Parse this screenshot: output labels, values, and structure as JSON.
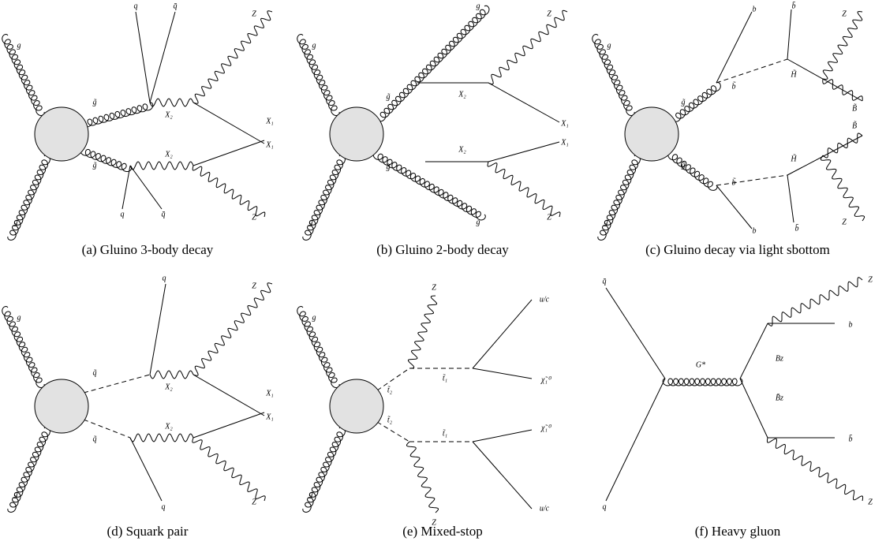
{
  "panels": [
    {
      "caption": "(a)  Gluino 3-body decay",
      "labels": [
        "g",
        "g",
        "q",
        "q̄",
        "Z",
        "g̃",
        "X₂",
        "X₁",
        "X₂",
        "X₁",
        "g̃",
        "q",
        "q̄",
        "Z"
      ]
    },
    {
      "caption": "(b)  Gluino 2-body decay",
      "labels": [
        "g",
        "g",
        "g",
        "Z",
        "g̃",
        "X₂",
        "X₁",
        "X₂",
        "X₁",
        "g̃",
        "g",
        "Z"
      ]
    },
    {
      "caption": "(c)  Gluino decay via light sbottom",
      "labels": [
        "g",
        "g",
        "b",
        "b̄",
        "Z",
        "g̃",
        "b̃",
        "H̃",
        "B̃",
        "g̃",
        "b̃",
        "H̃",
        "B̃",
        "b",
        "b̄",
        "Z"
      ]
    },
    {
      "caption": "(d)  Squark pair",
      "labels": [
        "g",
        "g",
        "q",
        "Z",
        "q̃",
        "X₂",
        "X₁",
        "X₂",
        "X₁",
        "q̃",
        "q",
        "Z"
      ]
    },
    {
      "caption": "(e)  Mixed-stop",
      "labels": [
        "g",
        "g",
        "Z",
        "u/c",
        "t̃₂",
        "t̃₁",
        "χ̃₁⁰",
        "t̃₂",
        "t̃₁",
        "χ̃₁⁰",
        "u/c",
        "Z"
      ]
    },
    {
      "caption": "(f)  Heavy gluon",
      "labels": [
        "q̄",
        "q",
        "G*",
        "Z",
        "b",
        "Bᴢ",
        "B̄ᴢ",
        "b̄",
        "Z"
      ]
    }
  ]
}
